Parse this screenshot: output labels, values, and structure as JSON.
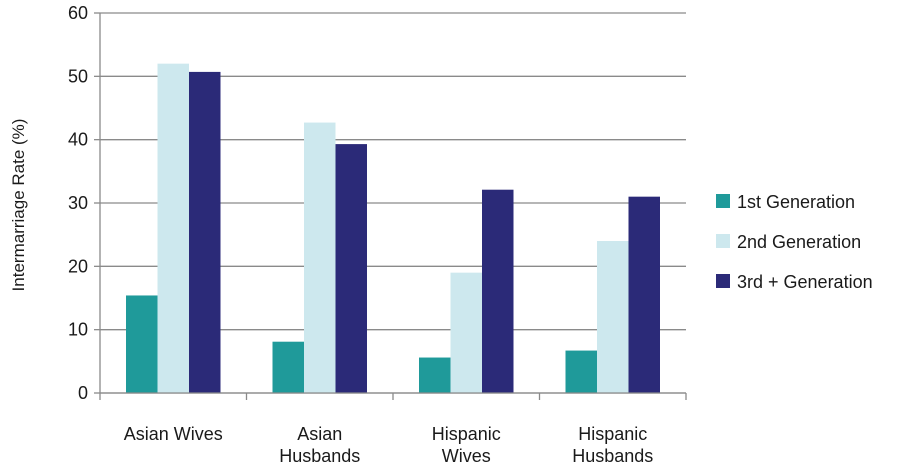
{
  "chart_data": {
    "type": "bar",
    "title": "",
    "ylabel": "Intermarriage Rate (%)",
    "xlabel": "",
    "ylim": [
      0,
      60
    ],
    "yticks": [
      0,
      10,
      20,
      30,
      40,
      50,
      60
    ],
    "grid": true,
    "legend_position": "right",
    "categories": [
      [
        "Asian Wives"
      ],
      [
        "Asian",
        "Husbands"
      ],
      [
        "Hispanic",
        "Wives"
      ],
      [
        "Hispanic",
        "Husbands"
      ]
    ],
    "series": [
      {
        "name": "1st Generation",
        "color": "#1f9a9a",
        "values": [
          15.4,
          8.1,
          5.6,
          6.7
        ]
      },
      {
        "name": "2nd Generation",
        "color": "#cde8ee",
        "values": [
          52,
          42.7,
          19,
          24
        ]
      },
      {
        "name": "3rd + Generation",
        "color": "#2b2a78",
        "values": [
          50.7,
          39.3,
          32.1,
          31
        ]
      }
    ]
  }
}
